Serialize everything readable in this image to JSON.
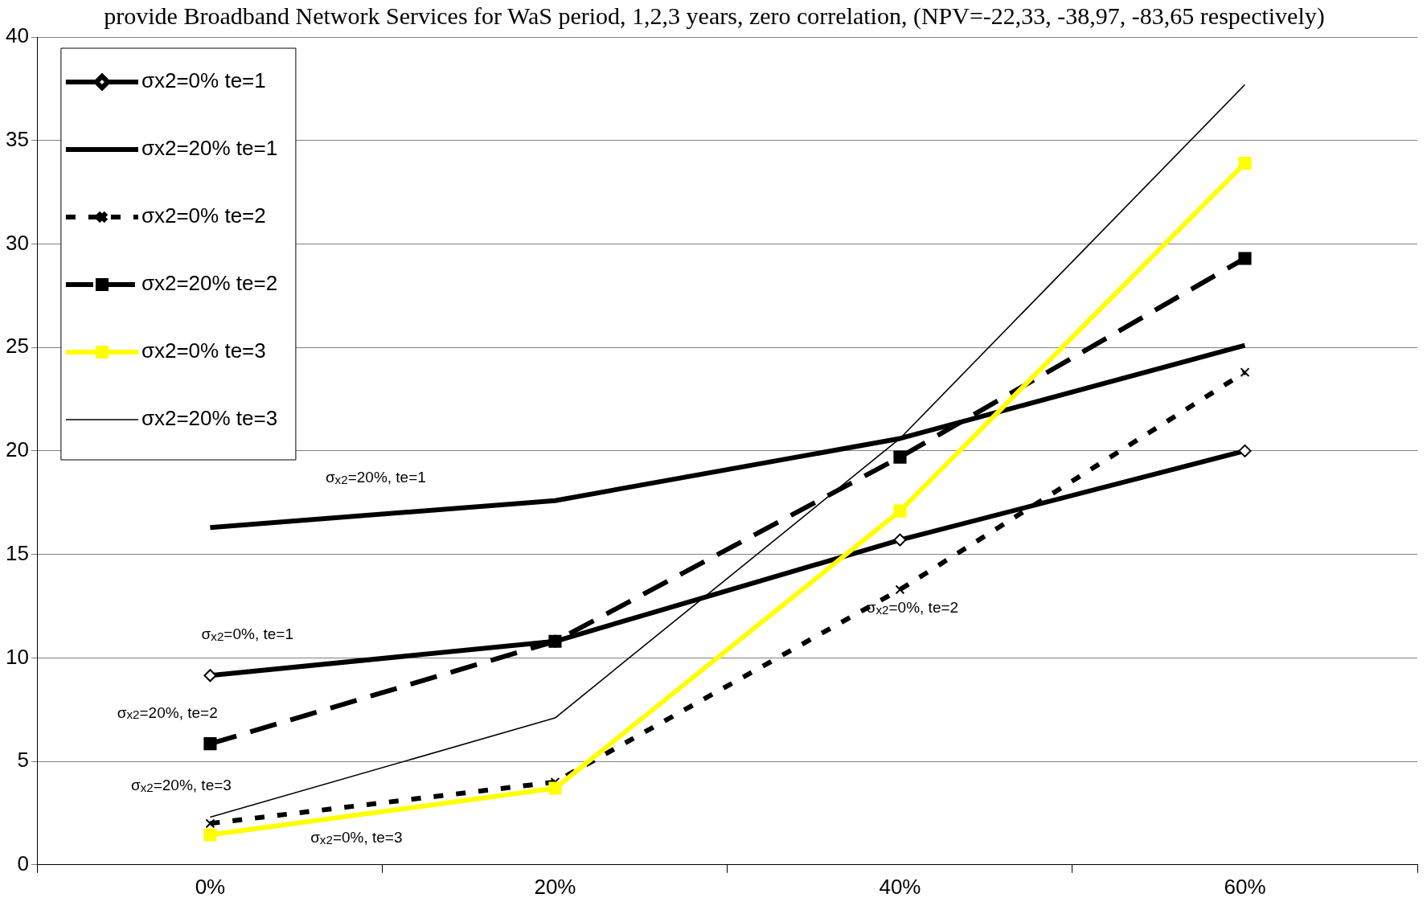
{
  "chart_data": {
    "type": "line",
    "title": "provide Broadband Network Services for WaS period, 1,2,3 years, zero correlation, (NPV=-22,33, -38,97, -83,65 respectively)",
    "categories": [
      "0%",
      "20%",
      "40%",
      "60%"
    ],
    "series": [
      {
        "name": "σx2=0% te=1",
        "color": "#000000",
        "marker": "diamond",
        "line_style": "solid",
        "values": [
          9.15,
          10.8,
          15.7,
          20.0
        ]
      },
      {
        "name": "σx2=20% te=1",
        "color": "#000000",
        "marker": "none",
        "line_style": "solid",
        "values": [
          16.3,
          17.6,
          20.6,
          25.1
        ]
      },
      {
        "name": "σx2=0% te=2",
        "color": "#000000",
        "marker": "cross",
        "line_style": "dotted",
        "values": [
          2.0,
          4.0,
          13.3,
          23.8
        ]
      },
      {
        "name": "σx2=20% te=2",
        "color": "#000000",
        "marker": "square",
        "line_style": "dashed",
        "values": [
          5.85,
          10.8,
          19.7,
          29.3
        ]
      },
      {
        "name": "σx2=0% te=3",
        "color": "#ffff00",
        "marker": "square",
        "line_style": "solid",
        "values": [
          1.45,
          3.7,
          17.1,
          33.9
        ]
      },
      {
        "name": "σx2=20% te=3",
        "color": "#000000",
        "marker": "none",
        "line_style": "solid",
        "values": [
          2.3,
          7.1,
          20.6,
          37.7
        ]
      }
    ],
    "ylim": [
      0,
      40
    ],
    "yticks": [
      0,
      5,
      10,
      15,
      20,
      25,
      30,
      35,
      40
    ],
    "grid": "y",
    "legend": "top left",
    "annotations": [
      "σ$_{x2}$=20%, te=1",
      "σ$_{x2}$=0%, te=1",
      "σ$_{x2}$=20%, te=2",
      "σ$_{x2}$=20%, te=3",
      "σ$_{x2}$=0%, te=3",
      "σ$_{x2}$=0%, te=2"
    ]
  }
}
